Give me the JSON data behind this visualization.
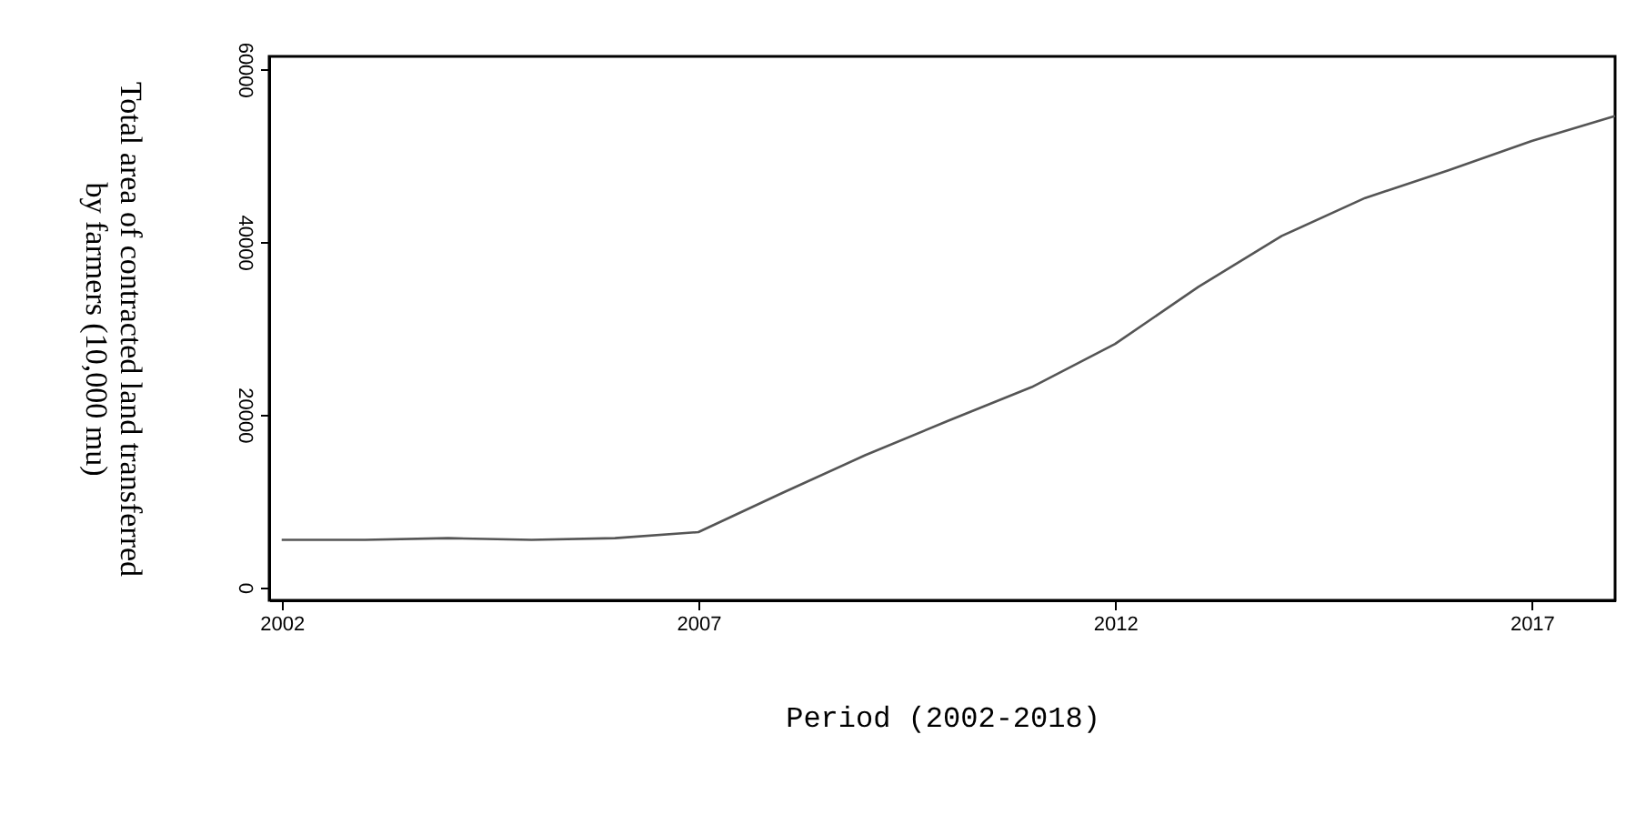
{
  "chart_data": {
    "type": "line",
    "xlabel": "Period (2002-2018)",
    "ylabel": "Total area of contracted land transferred\nby farmers (10,000 mu)",
    "x": [
      2002,
      2003,
      2004,
      2005,
      2006,
      2007,
      2008,
      2009,
      2010,
      2011,
      2012,
      2013,
      2014,
      2015,
      2016,
      2017,
      2018
    ],
    "series": [
      {
        "color": "#555555",
        "values": [
          5500,
          5500,
          5700,
          5500,
          5700,
          6400,
          10900,
          15300,
          19300,
          23200,
          28200,
          34800,
          40700,
          45100,
          48300,
          51700,
          54600
        ]
      }
    ],
    "xlim": [
      2001.85,
      2018
    ],
    "xticks": [
      2002,
      2007,
      2012,
      2017
    ],
    "ylim": [
      -1500,
      61500
    ],
    "yticks": [
      0,
      20000,
      40000,
      60000
    ],
    "grid": false,
    "marker": "none",
    "line_style": "solid"
  }
}
